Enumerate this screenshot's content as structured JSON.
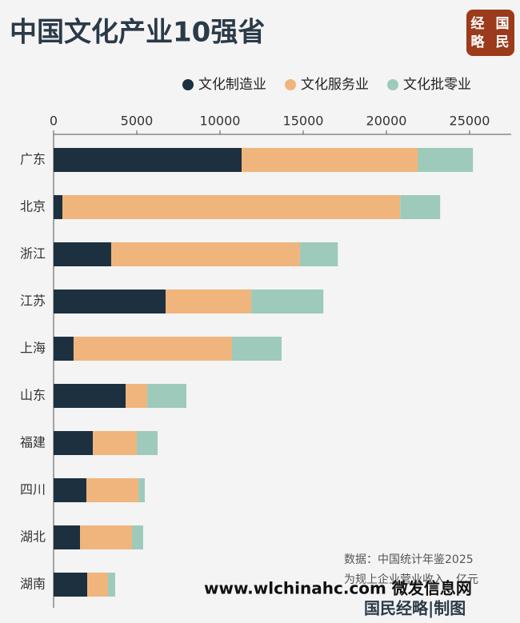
{
  "chart_data": {
    "type": "stacked-bar-horizontal",
    "title": "中国文化产业10强省",
    "categories": [
      "广东",
      "北京",
      "浙江",
      "江苏",
      "上海",
      "山东",
      "福建",
      "四川",
      "湖北",
      "湖南"
    ],
    "series": [
      {
        "name": "文化制造业",
        "color": "#1c3040",
        "values": [
          11300,
          530,
          3460,
          6730,
          1200,
          4330,
          2360,
          1970,
          1590,
          2020
        ]
      },
      {
        "name": "文化服务业",
        "color": "#f0b57c",
        "values": [
          10600,
          20300,
          11350,
          5150,
          9520,
          1300,
          2640,
          3130,
          3120,
          1250
        ]
      },
      {
        "name": "文化批零业",
        "color": "#9dcabb",
        "values": [
          3300,
          2400,
          2270,
          4330,
          2980,
          2350,
          1250,
          380,
          670,
          430
        ]
      }
    ],
    "xlim": [
      0,
      27500
    ],
    "xticks": [
      0,
      5000,
      10000,
      15000,
      20000,
      25000
    ],
    "source": "数据：中国统计年鉴2025",
    "note": "为规上企业营业收入，亿元"
  },
  "logo": [
    "经",
    "国",
    "略",
    "民"
  ],
  "watermark": "www.wlchinahc.com 微发信息网",
  "credit": "国民经略|制图"
}
